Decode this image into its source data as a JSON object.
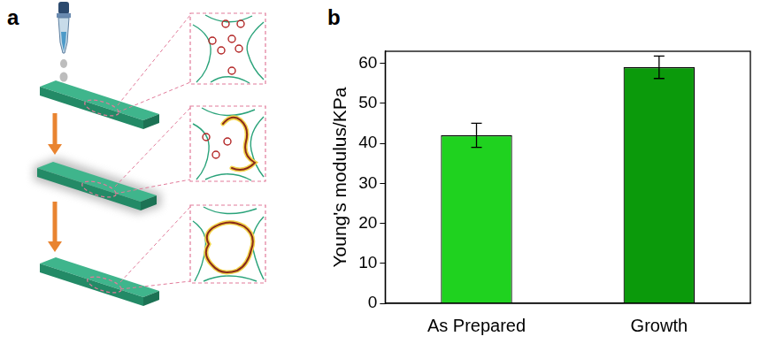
{
  "diagram": {
    "panel_label": "a"
  },
  "chart_data": {
    "type": "bar",
    "panel_label": "b",
    "y_label": "Young's modulus/KPa",
    "categories": [
      "As Prepared",
      "Growth"
    ],
    "values": [
      42,
      59
    ],
    "errors": [
      3,
      2.8
    ],
    "colors": [
      "#1fd21f",
      "#0b9a0b"
    ],
    "ylim": [
      0,
      63
    ],
    "yticks": [
      0,
      10,
      20,
      30,
      40,
      50,
      60
    ],
    "grid": false
  }
}
